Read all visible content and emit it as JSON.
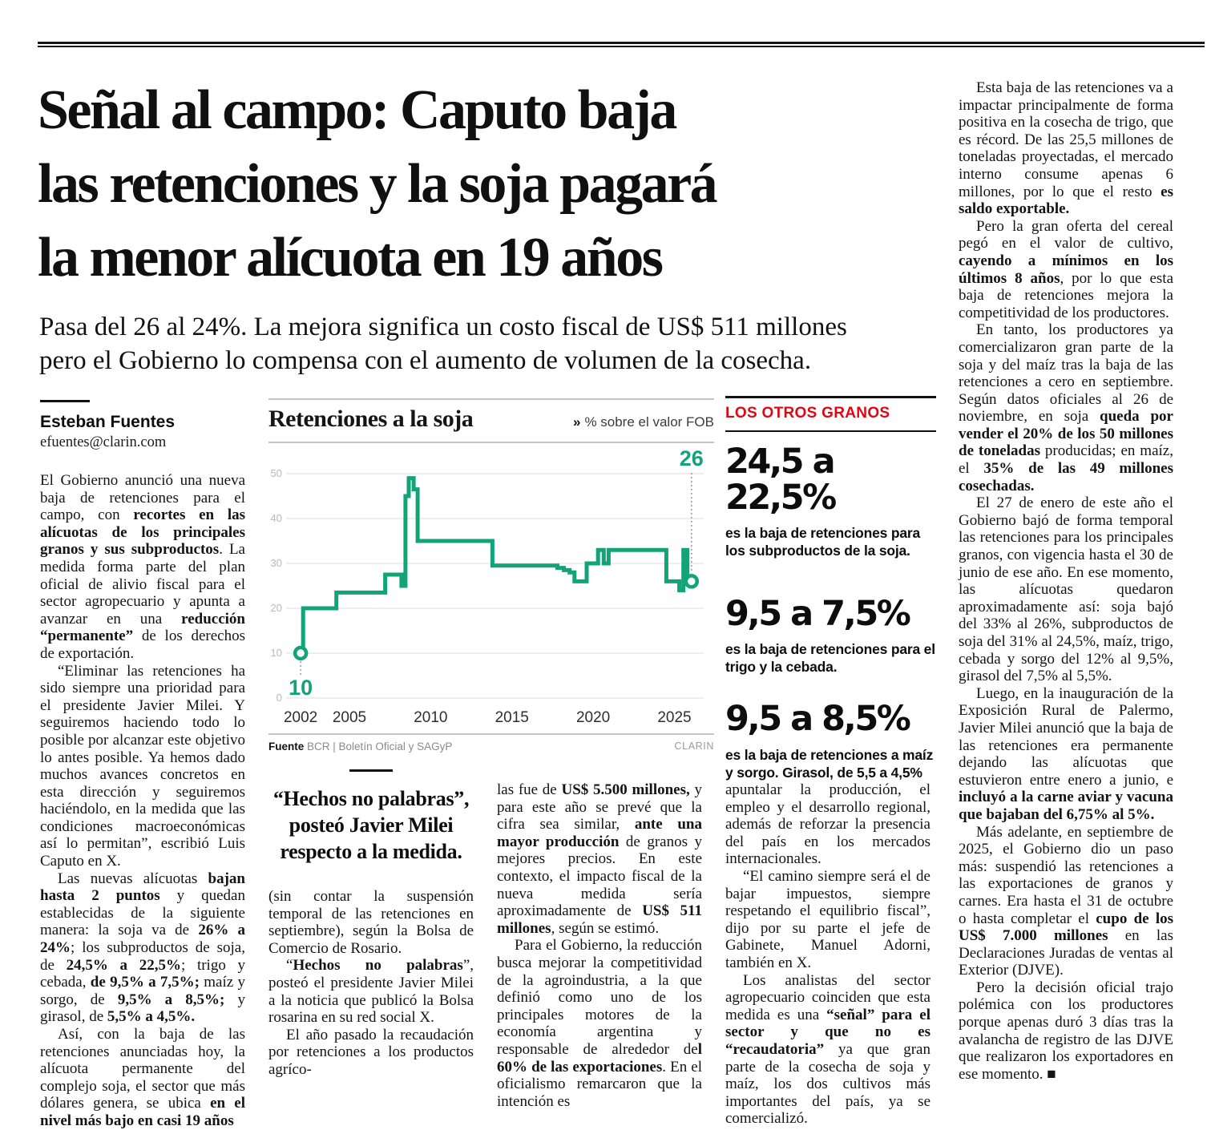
{
  "article": {
    "headline": "Señal al campo: Caputo baja\nlas retenciones y la soja pagará\nla menor alícuota en 19 años",
    "subheadline": "Pasa del 26 al 24%. La mejora significa un costo fiscal de US$ 511 millones\npero el Gobierno lo compensa con el aumento de volumen de la cosecha.",
    "byline": {
      "name": "Esteban Fuentes",
      "email": "efuentes@clarin.com"
    },
    "pull_quote": "“Hechos no palabras”,\nposteó Javier Milei\nrespecto a la medida.",
    "body": {
      "col1": [
        [
          {
            "t": "El Gobierno anunció una nueva baja de retenciones para el campo, con "
          },
          {
            "t": "recortes en las alícuotas de los principales granos y sus subproductos",
            "b": true
          },
          {
            "t": ". La medida forma parte del plan oficial de alivio fiscal para el sector agropecuario y apunta a avanzar en una "
          },
          {
            "t": "reducción “permanente”",
            "b": true
          },
          {
            "t": " de los derechos de exportación."
          }
        ],
        [
          {
            "t": "“Eliminar las retenciones ha sido siempre una prioridad para el presidente Javier Milei. Y seguiremos haciendo todo lo posible por alcanzar este objetivo lo antes posible. Ya hemos dado muchos avances concretos en esta dirección y seguiremos haciéndolo, en la medida que las condiciones macroeconómicas así lo permitan”, escribió Luis Caputo en X."
          }
        ],
        [
          {
            "t": "Las nuevas alícuotas "
          },
          {
            "t": "bajan hasta 2 puntos",
            "b": true
          },
          {
            "t": " y quedan establecidas de la siguiente manera: la soja va de "
          },
          {
            "t": "26% a 24%",
            "b": true
          },
          {
            "t": "; los subproductos de soja, de "
          },
          {
            "t": "24,5% a 22,5%",
            "b": true
          },
          {
            "t": "; trigo y cebada, "
          },
          {
            "t": "de 9,5% a 7,5%;",
            "b": true
          },
          {
            "t": " maíz y sorgo, de "
          },
          {
            "t": "9,5% a 8,5%;",
            "b": true
          },
          {
            "t": " y girasol, de "
          },
          {
            "t": "5,5% a 4,5%.",
            "b": true
          }
        ],
        [
          {
            "t": "Así, con la baja de las retenciones anunciadas hoy, la alícuota permanente del complejo soja, el sector que más dólares genera, se ubica "
          },
          {
            "t": "en el nivel más bajo en casi 19 años",
            "b": true
          }
        ]
      ],
      "col2": [
        [
          {
            "t": "(sin contar la suspensión temporal de las retenciones en septiembre), según la Bolsa de Comercio de Rosario."
          }
        ],
        [
          {
            "t": "“"
          },
          {
            "t": "Hechos no palabras",
            "b": true
          },
          {
            "t": "”, posteó el presidente Javier Milei a la noticia que publicó la Bolsa rosarina en su red social X."
          }
        ],
        [
          {
            "t": "El año pasado la recaudación por retenciones a los productos agríco-"
          }
        ]
      ],
      "col3": [
        [
          {
            "t": "las fue de "
          },
          {
            "t": "US$ 5.500 millones,",
            "b": true
          },
          {
            "t": " y para este año se prevé que la cifra sea similar, "
          },
          {
            "t": "ante una mayor producción",
            "b": true
          },
          {
            "t": " de granos y mejores precios. En este contexto, el impacto fiscal de la nueva medida sería aproximadamente de "
          },
          {
            "t": "US$ 511 millones",
            "b": true
          },
          {
            "t": ", según se estimó."
          }
        ],
        [
          {
            "t": "Para el Gobierno, la reducción busca mejorar la competitividad de la agroindustria, a la que definió como uno de los principales motores de la economía argentina y responsable de alrededor de"
          },
          {
            "t": "l 60% de las exportaciones",
            "b": true
          },
          {
            "t": ". En el oficialismo remarcaron que la intención es"
          }
        ]
      ],
      "col4": [
        [
          {
            "t": "apuntalar la producción, el empleo y el desarrollo regional, además de reforzar la presencia del país en los mercados internacionales."
          }
        ],
        [
          {
            "t": "“El camino siempre será el de bajar impuestos, siempre respetando el equilibrio fiscal”, dijo por su parte el jefe de Gabinete, Manuel Adorni, también en X."
          }
        ],
        [
          {
            "t": "Los analistas del sector agropecuario coinciden que esta medida es una "
          },
          {
            "t": "“señal” para el sector y que no es “recaudatoria”",
            "b": true
          },
          {
            "t": " ya que gran parte de la cosecha de soja y maíz, los dos cultivos más importantes del país, ya se comercializó."
          }
        ]
      ],
      "col5": [
        [
          {
            "t": "Esta baja de las retenciones va a impactar principalmente de forma positiva en la cosecha de trigo, que es récord. De las 25,5 millones de toneladas proyectadas, el mercado interno consume apenas 6 millones, por lo que el resto "
          },
          {
            "t": "es saldo exportable.",
            "b": true
          }
        ],
        [
          {
            "t": "Pero la gran oferta del cereal pegó en el valor de cultivo, "
          },
          {
            "t": "cayendo a mínimos en los últimos 8 años",
            "b": true
          },
          {
            "t": ", por lo que esta baja de retenciones mejora la competitividad de los productores."
          }
        ],
        [
          {
            "t": "En tanto, los productores ya comercializaron gran parte de la soja y del maíz tras la baja de las retenciones a cero en septiembre. Según datos oficiales al 26 de noviembre, en soja "
          },
          {
            "t": "queda por vender el 20% de los 50 millones de toneladas",
            "b": true
          },
          {
            "t": " producidas; en maíz, el "
          },
          {
            "t": "35% de las 49 millones cosechadas.",
            "b": true
          }
        ],
        [
          {
            "t": "El 27 de enero de este año el Gobierno bajó de forma temporal las retenciones para los principales granos, con vigencia hasta el 30 de junio de ese año. En ese momento, las alícuotas quedaron aproximadamente así: soja bajó del 33% al 26%, subproductos de soja del 31% al 24,5%, maíz, trigo, cebada y sorgo del 12% al 9,5%, girasol del 7,5% al 5,5%."
          }
        ],
        [
          {
            "t": "Luego, en la inauguración de la Exposición Rural de Palermo, Javier Milei anunció que la baja de las retenciones era permanente dejando las alícuotas que estuvieron entre enero a junio, e "
          },
          {
            "t": "incluyó a la carne aviar y vacuna que bajaban del 6,75% al 5%.",
            "b": true
          }
        ],
        [
          {
            "t": "Más adelante, en septiembre de 2025, el Gobierno dio un paso más: suspendió las retenciones a las exportaciones de granos y carnes. Era hasta el 31 de octubre o hasta completar el "
          },
          {
            "t": "cupo de los US$ 7.000 millones",
            "b": true
          },
          {
            "t": " en las Declaraciones Juradas de ventas al Exterior (DJVE)."
          }
        ],
        [
          {
            "t": "Pero la decisión oficial trajo polémica con los productores porque apenas duró 3 días tras la avalancha de registro de las DJVE que realizaron los exportadores en ese momento. ■"
          }
        ]
      ]
    }
  },
  "panel": {
    "kicker": "LOS OTROS GRANOS",
    "accent_color": "#e20613",
    "items": [
      {
        "figure": "24,5 a 22,5%",
        "caption": "es la baja de retenciones para los subproductos de la soja."
      },
      {
        "figure": "9,5 a 7,5%",
        "caption": "es la baja de retenciones para el trigo y la cebada."
      },
      {
        "figure": "9,5 a 8,5%",
        "caption": "es la baja de retenciones a maíz y sorgo. Girasol, de 5,5 a 4,5%"
      }
    ]
  },
  "chart_data": {
    "type": "line",
    "step": true,
    "title": "Retenciones a la soja",
    "unit_prefix": "»",
    "unit_label": "% sobre el valor FOB",
    "source_label": "Fuente",
    "source": "BCR | Boletín Oficial y SAGyP",
    "credit": "CLARIN",
    "line_color": "#12a377",
    "grid_color": "#e4e4e4",
    "xlim": [
      2001.5,
      2026.8
    ],
    "ylim": [
      0,
      50
    ],
    "yticks": [
      0,
      10,
      20,
      30,
      40,
      50
    ],
    "xticks": [
      2002,
      2005,
      2010,
      2015,
      2020,
      2025
    ],
    "points": [
      [
        2002,
        10
      ],
      [
        2002.15,
        20
      ],
      [
        2004.2,
        23.5
      ],
      [
        2007.2,
        27.5
      ],
      [
        2008.2,
        25
      ],
      [
        2008.45,
        45
      ],
      [
        2008.65,
        49
      ],
      [
        2008.95,
        46.5
      ],
      [
        2009.2,
        35
      ],
      [
        2013.8,
        29.5
      ],
      [
        2017.8,
        29
      ],
      [
        2018.2,
        28.5
      ],
      [
        2018.55,
        28
      ],
      [
        2018.85,
        26
      ],
      [
        2019.6,
        30
      ],
      [
        2020.3,
        33
      ],
      [
        2020.65,
        30
      ],
      [
        2020.95,
        33
      ],
      [
        2024.5,
        26
      ],
      [
        2025.3,
        24
      ],
      [
        2025.55,
        33
      ],
      [
        2025.8,
        26
      ]
    ],
    "end_x": 2026.05,
    "annotations": [
      {
        "x": 2002,
        "y": 10,
        "label": "10",
        "pos": "below"
      },
      {
        "x": 2026.05,
        "y": 26,
        "label": "26",
        "pos": "above"
      }
    ]
  }
}
